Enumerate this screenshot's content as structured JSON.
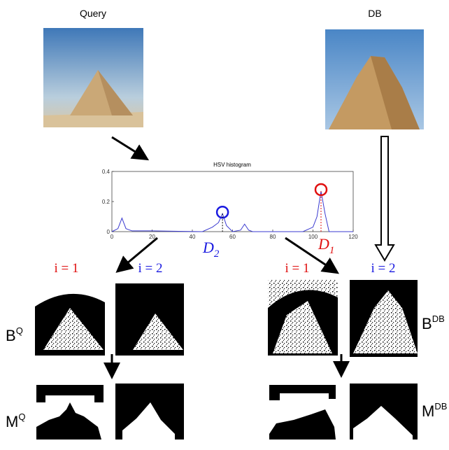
{
  "labels": {
    "query": "Query",
    "db": "DB"
  },
  "histogram": {
    "title": "HSV histogram",
    "x": [
      0,
      3,
      5,
      7,
      10,
      20,
      45,
      50,
      53,
      55,
      57,
      60,
      64,
      66,
      68,
      70,
      95,
      100,
      102,
      104,
      106,
      108,
      120
    ],
    "values": [
      0,
      0.02,
      0.09,
      0.02,
      0.005,
      0.005,
      0,
      0.03,
      0.06,
      0.12,
      0.04,
      0,
      0.01,
      0.05,
      0.01,
      0,
      0,
      0.03,
      0.1,
      0.27,
      0.12,
      0,
      0
    ],
    "color": "#3a3ad0",
    "xlim": [
      0,
      120
    ],
    "ylim": [
      0,
      0.4
    ],
    "xticks": [
      0,
      20,
      40,
      60,
      80,
      100,
      120
    ],
    "yticks": [
      0,
      0.2,
      0.4
    ]
  },
  "annotations": [
    {
      "symbol": "D",
      "subscript": "2",
      "color": "#1a1ae0"
    },
    {
      "symbol": "D",
      "subscript": "1",
      "color": "#e01010"
    }
  ],
  "indices": [
    {
      "text": "i = 1",
      "color": "#e01010"
    },
    {
      "text": "i = 2",
      "color": "#1a1ae0"
    },
    {
      "text": "i = 1",
      "color": "#e01010"
    },
    {
      "text": "i = 2",
      "color": "#1a1ae0"
    }
  ],
  "masks": {
    "bq": {
      "base": "B",
      "sup": "Q"
    },
    "bdb": {
      "base": "B",
      "sup": "DB"
    },
    "mq": {
      "base": "M",
      "sup": "Q"
    },
    "mdb": {
      "base": "M",
      "sup": "DB"
    }
  }
}
